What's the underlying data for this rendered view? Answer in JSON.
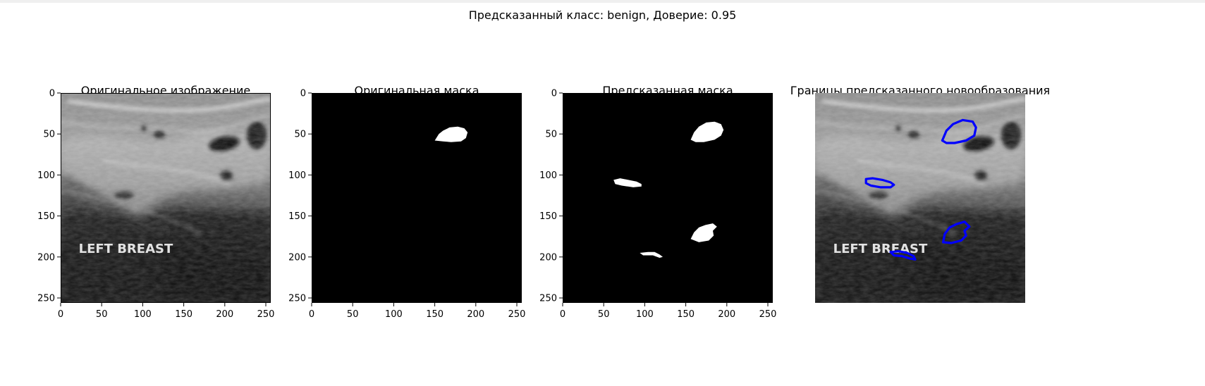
{
  "suptitle": "Предсказанный класс: benign, Доверие: 0.95",
  "chart_data": [
    {
      "type": "image",
      "title": "Оригинальное изображение",
      "axes_visible": true,
      "xlim": [
        0,
        256
      ],
      "ylim": [
        256,
        0
      ],
      "xticks": [
        0,
        50,
        100,
        150,
        200,
        250
      ],
      "yticks": [
        0,
        50,
        100,
        150,
        200,
        250
      ],
      "overlay_text": "LEFT BREAST"
    },
    {
      "type": "image",
      "title": "Оригинальная маска",
      "axes_visible": true,
      "xlim": [
        0,
        256
      ],
      "ylim": [
        256,
        0
      ],
      "xticks": [
        0,
        50,
        100,
        150,
        200,
        250
      ],
      "yticks": [
        0,
        50,
        100,
        150,
        200,
        250
      ],
      "background_color": "#000000",
      "mask_color": "#ffffff"
    },
    {
      "type": "image",
      "title": "Предсказанная маска",
      "axes_visible": true,
      "xlim": [
        0,
        256
      ],
      "ylim": [
        256,
        0
      ],
      "xticks": [
        0,
        50,
        100,
        150,
        200,
        250
      ],
      "yticks": [
        0,
        50,
        100,
        150,
        200,
        250
      ],
      "background_color": "#000000",
      "mask_color": "#ffffff"
    },
    {
      "type": "image",
      "title": "Границы предсказанного новообразования",
      "axes_visible": false,
      "xlim": [
        0,
        256
      ],
      "ylim": [
        256,
        0
      ],
      "overlay_text": "LEFT BREAST",
      "contour_color": "#0000ff"
    }
  ]
}
